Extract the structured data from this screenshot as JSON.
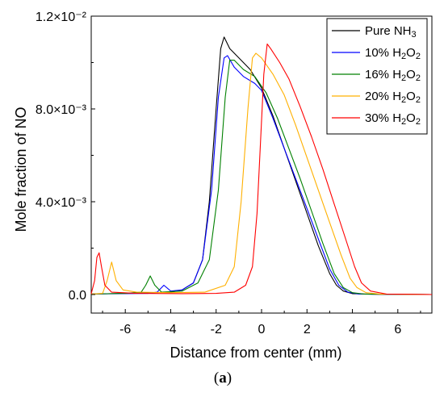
{
  "chart_data": {
    "type": "line",
    "xlabel": "Distance from center (mm)",
    "ylabel": "Mole fraction of NO",
    "caption_open": "(",
    "caption_letter": "a",
    "caption_close": ")",
    "xlim": [
      -7.5,
      7.5
    ],
    "ylim": [
      -0.0008,
      0.012
    ],
    "x_ticks": [
      -6,
      -4,
      -2,
      0,
      2,
      4,
      6
    ],
    "x_tick_labels": [
      "-6",
      "-4",
      "-2",
      "0",
      "2",
      "4",
      "6"
    ],
    "y_ticks": [
      0,
      0.004,
      0.008,
      0.012
    ],
    "y_tick_labels": [
      "0.0",
      "4.0×10⁻³",
      "8.0×10⁻³",
      "1.2×10⁻²"
    ],
    "legend_position": "top-right",
    "series": [
      {
        "legend_main": "Pure NH",
        "legend_sub": "3",
        "color": "#000000",
        "points": [
          [
            -7.5,
            2e-05
          ],
          [
            -6,
            5e-05
          ],
          [
            -5,
            7e-05
          ],
          [
            -4,
            0.0001
          ],
          [
            -3.5,
            0.0002
          ],
          [
            -3,
            0.0005
          ],
          [
            -2.6,
            0.0015
          ],
          [
            -2.3,
            0.004
          ],
          [
            -2.0,
            0.008
          ],
          [
            -1.8,
            0.0106
          ],
          [
            -1.65,
            0.0111
          ],
          [
            -1.4,
            0.0106
          ],
          [
            -1.0,
            0.0102
          ],
          [
            -0.5,
            0.0097
          ],
          [
            0,
            0.0089
          ],
          [
            0.5,
            0.0077
          ],
          [
            1.0,
            0.0063
          ],
          [
            1.5,
            0.0049
          ],
          [
            2.0,
            0.0035
          ],
          [
            2.5,
            0.0021
          ],
          [
            3.0,
            0.0009
          ],
          [
            3.3,
            0.0004
          ],
          [
            3.6,
            0.00015
          ],
          [
            4,
            4e-05
          ],
          [
            5,
            1e-05
          ],
          [
            7.5,
            0
          ]
        ]
      },
      {
        "legend_main": "10% H",
        "legend_sub": "2",
        "legend_main2": "O",
        "legend_sub2": "2",
        "color": "#0000ff",
        "points": [
          [
            -7.5,
            2e-05
          ],
          [
            -5,
            5e-05
          ],
          [
            -4.6,
            0.0001
          ],
          [
            -4.3,
            0.0004
          ],
          [
            -4.0,
            0.00015
          ],
          [
            -3.5,
            0.0002
          ],
          [
            -3,
            0.0005
          ],
          [
            -2.6,
            0.0015
          ],
          [
            -2.2,
            0.0045
          ],
          [
            -1.9,
            0.0085
          ],
          [
            -1.65,
            0.0102
          ],
          [
            -1.5,
            0.0103
          ],
          [
            -1.2,
            0.0098
          ],
          [
            -0.8,
            0.0094
          ],
          [
            -0.3,
            0.0091
          ],
          [
            0,
            0.0088
          ],
          [
            0.5,
            0.0076
          ],
          [
            1.0,
            0.0063
          ],
          [
            1.5,
            0.005
          ],
          [
            2.0,
            0.0037
          ],
          [
            2.5,
            0.0024
          ],
          [
            3.0,
            0.0011
          ],
          [
            3.4,
            0.0004
          ],
          [
            3.8,
            0.0001
          ],
          [
            4.3,
            2e-05
          ],
          [
            7.5,
            0
          ]
        ]
      },
      {
        "legend_main": "16% H",
        "legend_sub": "2",
        "legend_main2": "O",
        "legend_sub2": "2",
        "color": "#008000",
        "points": [
          [
            -7.5,
            2e-05
          ],
          [
            -6,
            5e-05
          ],
          [
            -5.3,
            0.0001
          ],
          [
            -5.1,
            0.0004
          ],
          [
            -4.9,
            0.0008
          ],
          [
            -4.7,
            0.0004
          ],
          [
            -4.4,
            0.0001
          ],
          [
            -3.5,
            0.00015
          ],
          [
            -2.8,
            0.0005
          ],
          [
            -2.3,
            0.0015
          ],
          [
            -1.9,
            0.0045
          ],
          [
            -1.6,
            0.0085
          ],
          [
            -1.4,
            0.0101
          ],
          [
            -1.2,
            0.0101
          ],
          [
            -0.8,
            0.0097
          ],
          [
            -0.3,
            0.0094
          ],
          [
            0.2,
            0.0087
          ],
          [
            0.7,
            0.0076
          ],
          [
            1.2,
            0.0063
          ],
          [
            1.7,
            0.005
          ],
          [
            2.2,
            0.0036
          ],
          [
            2.7,
            0.0022
          ],
          [
            3.2,
            0.0009
          ],
          [
            3.6,
            0.0003
          ],
          [
            4.0,
            8e-05
          ],
          [
            4.5,
            2e-05
          ],
          [
            7.5,
            0
          ]
        ]
      },
      {
        "legend_main": "20% H",
        "legend_sub": "2",
        "legend_main2": "O",
        "legend_sub2": "2",
        "color": "#ffb000",
        "points": [
          [
            -7.5,
            2e-05
          ],
          [
            -7.0,
            5e-05
          ],
          [
            -6.8,
            0.0006
          ],
          [
            -6.6,
            0.0014
          ],
          [
            -6.4,
            0.0006
          ],
          [
            -6.1,
            0.0002
          ],
          [
            -5.5,
            0.0001
          ],
          [
            -4,
            8e-05
          ],
          [
            -2.5,
            0.0001
          ],
          [
            -1.6,
            0.0004
          ],
          [
            -1.2,
            0.0012
          ],
          [
            -0.9,
            0.004
          ],
          [
            -0.6,
            0.008
          ],
          [
            -0.4,
            0.0102
          ],
          [
            -0.25,
            0.0104
          ],
          [
            0,
            0.0102
          ],
          [
            0.5,
            0.0095
          ],
          [
            1.0,
            0.0086
          ],
          [
            1.5,
            0.0073
          ],
          [
            2.0,
            0.0059
          ],
          [
            2.5,
            0.0045
          ],
          [
            3.0,
            0.0031
          ],
          [
            3.5,
            0.0017
          ],
          [
            3.9,
            0.0007
          ],
          [
            4.2,
            0.0003
          ],
          [
            4.6,
            8e-05
          ],
          [
            5.2,
            2e-05
          ],
          [
            7.5,
            0
          ]
        ]
      },
      {
        "legend_main": "30% H",
        "legend_sub": "2",
        "legend_main2": "O",
        "legend_sub2": "2",
        "color": "#ff0000",
        "points": [
          [
            -7.5,
            3e-05
          ],
          [
            -7.35,
            0.0006
          ],
          [
            -7.25,
            0.0016
          ],
          [
            -7.15,
            0.0018
          ],
          [
            -7.05,
            0.0012
          ],
          [
            -6.9,
            0.0004
          ],
          [
            -6.6,
            0.0001
          ],
          [
            -5.5,
            5e-05
          ],
          [
            -3.5,
            4e-05
          ],
          [
            -2,
            5e-05
          ],
          [
            -1.2,
            0.0001
          ],
          [
            -0.7,
            0.0004
          ],
          [
            -0.4,
            0.0012
          ],
          [
            -0.2,
            0.0035
          ],
          [
            -0.05,
            0.0065
          ],
          [
            0.1,
            0.0095
          ],
          [
            0.25,
            0.0108
          ],
          [
            0.4,
            0.0106
          ],
          [
            0.8,
            0.01
          ],
          [
            1.2,
            0.0093
          ],
          [
            1.7,
            0.0081
          ],
          [
            2.2,
            0.0068
          ],
          [
            2.7,
            0.0054
          ],
          [
            3.2,
            0.0039
          ],
          [
            3.7,
            0.0024
          ],
          [
            4.1,
            0.0012
          ],
          [
            4.4,
            0.0005
          ],
          [
            4.8,
            0.00015
          ],
          [
            5.5,
            2e-05
          ],
          [
            7.5,
            0
          ]
        ]
      }
    ]
  }
}
